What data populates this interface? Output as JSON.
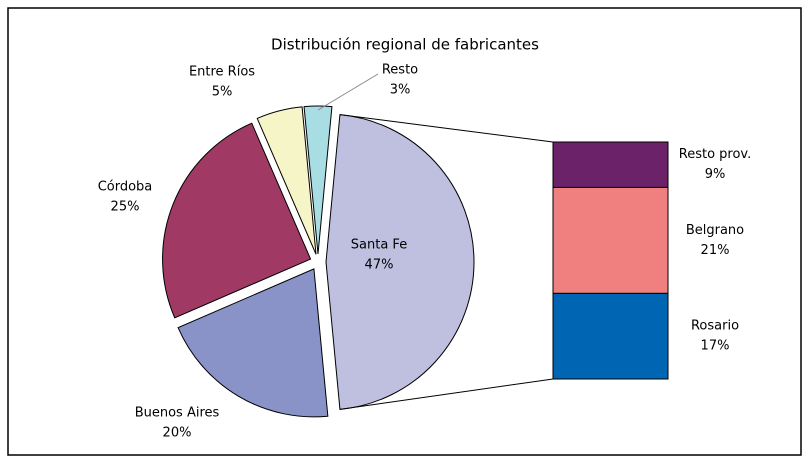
{
  "chart_data": {
    "type": "pie",
    "title": "Distribución regional de fabricantes",
    "categories": [
      "Santa Fe",
      "Buenos Aires",
      "Córdoba",
      "Entre Ríos",
      "Resto"
    ],
    "values": [
      47,
      20,
      25,
      5,
      3
    ],
    "value_labels": [
      "47%",
      "20%",
      "25%",
      "5%",
      "3%"
    ],
    "colors": [
      "#bfbfe0",
      "#8a93c8",
      "#a03a65",
      "#f5f5c8",
      "#a8dde3"
    ],
    "breakdown": {
      "type": "bar",
      "categories": [
        "Rosario",
        "Belgrano",
        "Resto prov."
      ],
      "values": [
        17,
        21,
        9
      ],
      "value_labels": [
        "17%",
        "21%",
        "9%"
      ],
      "colors": [
        "#0066b3",
        "#f08080",
        "#6b2268"
      ]
    }
  }
}
